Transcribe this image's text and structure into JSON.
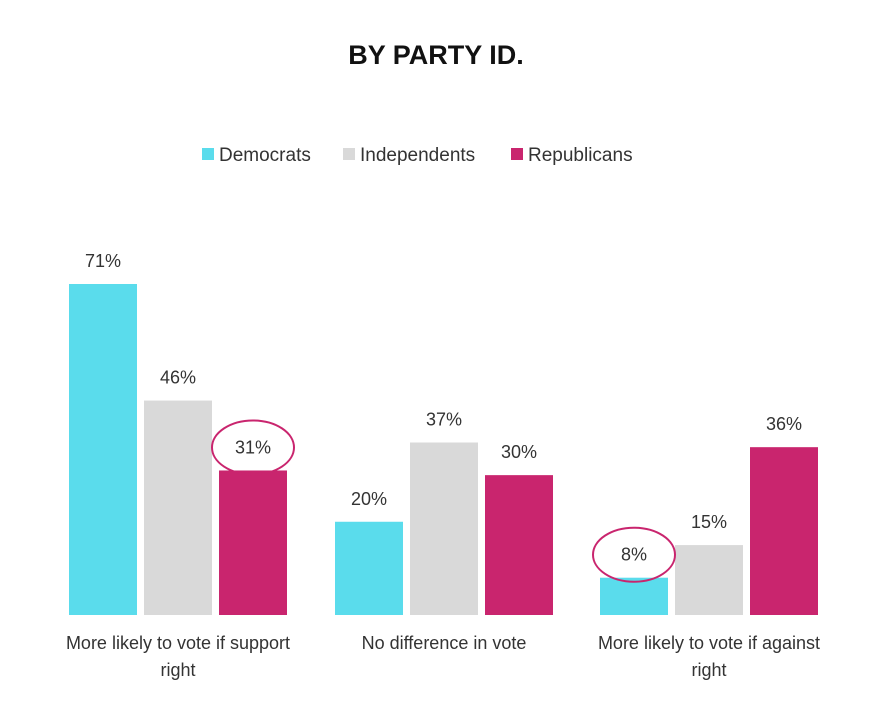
{
  "chart_data": {
    "type": "bar",
    "title": "BY PARTY ID.",
    "categories": [
      [
        "More likely to vote if support",
        "right"
      ],
      [
        "No difference in vote"
      ],
      [
        "More likely to vote if against",
        "right"
      ]
    ],
    "series": [
      {
        "name": "Democrats",
        "color": "#5ADCEC",
        "values": [
          71,
          20,
          8
        ],
        "labels": [
          "71%",
          "20%",
          "8%"
        ]
      },
      {
        "name": "Independents",
        "color": "#D9D9D9",
        "values": [
          46,
          37,
          15
        ],
        "labels": [
          "46%",
          "37%",
          "15%"
        ]
      },
      {
        "name": "Republicans",
        "color": "#C9256E",
        "values": [
          31,
          30,
          36
        ],
        "labels": [
          "31%",
          "30%",
          "36%"
        ]
      }
    ],
    "highlighted": [
      {
        "series": 2,
        "category": 0
      },
      {
        "series": 0,
        "category": 2
      }
    ],
    "highlight_color": "#C9256E",
    "ylim": [
      0,
      71
    ],
    "legend_position": "top-center",
    "grid": false
  }
}
